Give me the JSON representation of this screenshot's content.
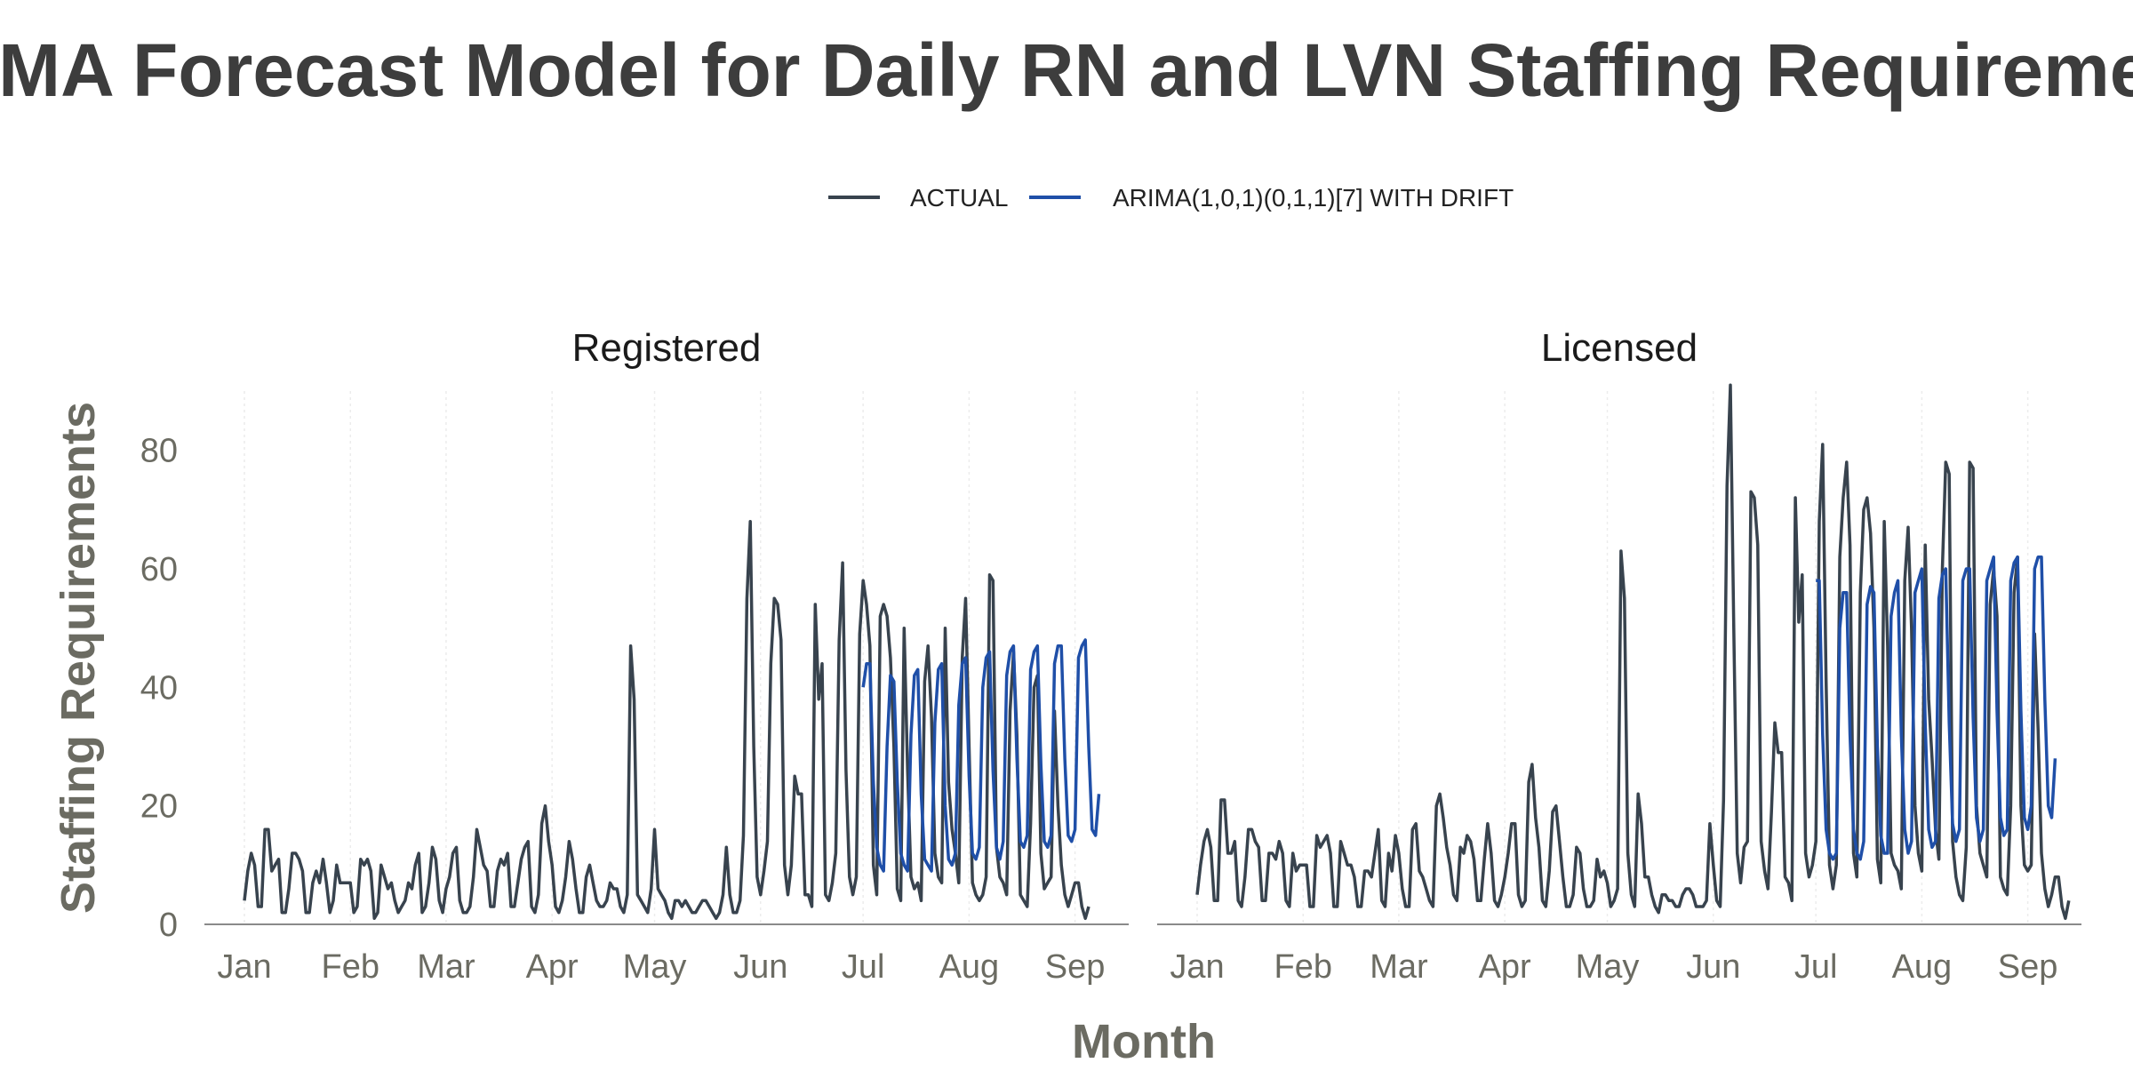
{
  "chart_data": {
    "type": "line",
    "title": "ARIMA Forecast Model for Daily RN and LVN Staffing Requirements",
    "xlabel": "Month",
    "ylabel": "Staffing Requirements",
    "ylim": [
      0,
      90
    ],
    "yticks": [
      0,
      20,
      40,
      60,
      80
    ],
    "xtick_labels": [
      "Jan",
      "Feb",
      "Mar",
      "Apr",
      "May",
      "Jun",
      "Jul",
      "Aug",
      "Sep"
    ],
    "legend_position": "top",
    "grid": true,
    "colors": {
      "actual": "#38434e",
      "forecast": "#1f4fa8"
    },
    "legend": [
      {
        "name": "ACTUAL",
        "color": "#38434e"
      },
      {
        "name": "ARIMA(1,0,1)(0,1,1)[7] WITH DRIFT",
        "color": "#1f4fa8"
      }
    ],
    "x_start": "2022-01-01",
    "forecast_start": "2022-07-01",
    "panels": [
      {
        "title": "Registered",
        "actual": [
          4,
          9,
          12,
          10,
          3,
          3,
          16,
          16,
          9,
          10,
          11,
          2,
          2,
          6,
          12,
          12,
          11,
          9,
          2,
          2,
          7,
          9,
          7,
          11,
          7,
          2,
          4,
          10,
          7,
          7,
          7,
          7,
          2,
          3,
          11,
          10,
          11,
          9,
          1,
          2,
          10,
          8,
          6,
          7,
          4,
          2,
          3,
          4,
          7,
          6,
          10,
          12,
          2,
          3,
          7,
          13,
          11,
          4,
          2,
          6,
          8,
          12,
          13,
          4,
          2,
          2,
          3,
          8,
          16,
          13,
          10,
          9,
          3,
          3,
          9,
          11,
          10,
          12,
          3,
          3,
          7,
          11,
          13,
          14,
          3,
          2,
          5,
          17,
          20,
          14,
          10,
          3,
          2,
          4,
          8,
          14,
          11,
          6,
          2,
          2,
          8,
          10,
          7,
          4,
          3,
          3,
          4,
          7,
          6,
          6,
          3,
          2,
          5,
          47,
          38,
          5,
          4,
          3,
          2,
          6,
          16,
          6,
          5,
          4,
          2,
          1,
          4,
          4,
          3,
          4,
          3,
          2,
          2,
          3,
          4,
          4,
          3,
          2,
          1,
          2,
          5,
          13,
          5,
          2,
          2,
          4,
          15,
          55,
          68,
          30,
          8,
          5,
          9,
          14,
          44,
          55,
          54,
          48,
          10,
          5,
          10,
          25,
          22,
          22,
          5,
          5,
          3,
          54,
          38,
          44,
          5,
          4,
          7,
          12,
          48,
          61,
          26,
          8,
          5,
          8,
          49,
          58,
          54,
          47,
          10,
          5,
          52,
          54,
          52,
          45,
          30,
          6,
          4,
          50,
          26,
          8,
          6,
          7,
          4,
          41,
          47,
          35,
          12,
          8,
          7,
          50,
          24,
          16,
          12,
          7,
          45,
          55,
          30,
          7,
          5,
          4,
          5,
          8,
          59,
          58,
          13,
          8,
          7,
          5,
          36,
          46,
          32,
          5,
          4,
          3,
          17,
          40,
          42,
          12,
          6,
          7,
          8,
          36,
          20,
          10,
          5,
          3,
          5,
          7,
          7,
          3,
          1,
          3
        ],
        "forecast": [
          40,
          44,
          44,
          24,
          13,
          10,
          9,
          30,
          42,
          41,
          24,
          12,
          10,
          9,
          32,
          42,
          43,
          22,
          11,
          10,
          9,
          34,
          43,
          44,
          20,
          11,
          10,
          12,
          37,
          44,
          45,
          25,
          12,
          11,
          13,
          40,
          45,
          46,
          26,
          13,
          11,
          14,
          42,
          46,
          47,
          28,
          14,
          13,
          15,
          43,
          46,
          47,
          27,
          14,
          13,
          15,
          44,
          47,
          47,
          28,
          15,
          14,
          16,
          45,
          47,
          48,
          30,
          16,
          15,
          22
        ]
      },
      {
        "title": "Licensed",
        "actual": [
          5,
          10,
          14,
          16,
          13,
          4,
          4,
          21,
          21,
          12,
          12,
          14,
          4,
          3,
          8,
          16,
          16,
          14,
          13,
          4,
          4,
          12,
          12,
          11,
          14,
          12,
          4,
          3,
          12,
          9,
          10,
          10,
          10,
          3,
          3,
          15,
          13,
          14,
          15,
          12,
          3,
          3,
          14,
          12,
          10,
          10,
          8,
          3,
          3,
          9,
          9,
          8,
          12,
          16,
          4,
          3,
          12,
          9,
          15,
          12,
          6,
          3,
          3,
          16,
          17,
          9,
          8,
          6,
          4,
          3,
          20,
          22,
          18,
          13,
          10,
          5,
          4,
          13,
          12,
          15,
          14,
          11,
          4,
          4,
          11,
          17,
          12,
          4,
          3,
          5,
          8,
          12,
          17,
          17,
          5,
          3,
          4,
          24,
          27,
          18,
          13,
          4,
          3,
          9,
          19,
          20,
          14,
          8,
          3,
          3,
          5,
          13,
          12,
          6,
          3,
          3,
          4,
          11,
          8,
          9,
          7,
          3,
          4,
          6,
          63,
          55,
          12,
          5,
          3,
          22,
          17,
          8,
          8,
          5,
          3,
          2,
          5,
          5,
          4,
          4,
          3,
          3,
          5,
          6,
          6,
          5,
          3,
          3,
          3,
          4,
          17,
          10,
          4,
          3,
          21,
          74,
          91,
          50,
          12,
          7,
          13,
          14,
          73,
          72,
          64,
          14,
          9,
          6,
          19,
          34,
          29,
          29,
          8,
          7,
          4,
          72,
          51,
          59,
          12,
          8,
          10,
          14,
          68,
          81,
          41,
          10,
          6,
          10,
          62,
          72,
          78,
          64,
          12,
          8,
          56,
          70,
          72,
          66,
          50,
          11,
          7,
          68,
          47,
          12,
          10,
          9,
          6,
          58,
          67,
          50,
          20,
          12,
          9,
          64,
          38,
          28,
          16,
          11,
          60,
          78,
          76,
          14,
          8,
          5,
          4,
          13,
          78,
          77,
          20,
          12,
          10,
          8,
          54,
          60,
          52,
          8,
          6,
          5,
          20,
          56,
          62,
          20,
          10,
          9,
          10,
          49,
          33,
          12,
          6,
          3,
          5,
          8,
          8,
          3,
          1,
          4
        ],
        "forecast": [
          58,
          58,
          32,
          16,
          12,
          11,
          12,
          50,
          56,
          56,
          32,
          16,
          12,
          11,
          14,
          54,
          57,
          56,
          30,
          15,
          12,
          12,
          52,
          56,
          58,
          32,
          16,
          12,
          14,
          56,
          58,
          60,
          34,
          16,
          13,
          14,
          55,
          59,
          60,
          34,
          17,
          14,
          16,
          58,
          60,
          60,
          35,
          18,
          14,
          16,
          58,
          60,
          62,
          36,
          18,
          15,
          16,
          58,
          61,
          62,
          36,
          18,
          16,
          20,
          60,
          62,
          62,
          38,
          20,
          18,
          28
        ]
      }
    ]
  }
}
